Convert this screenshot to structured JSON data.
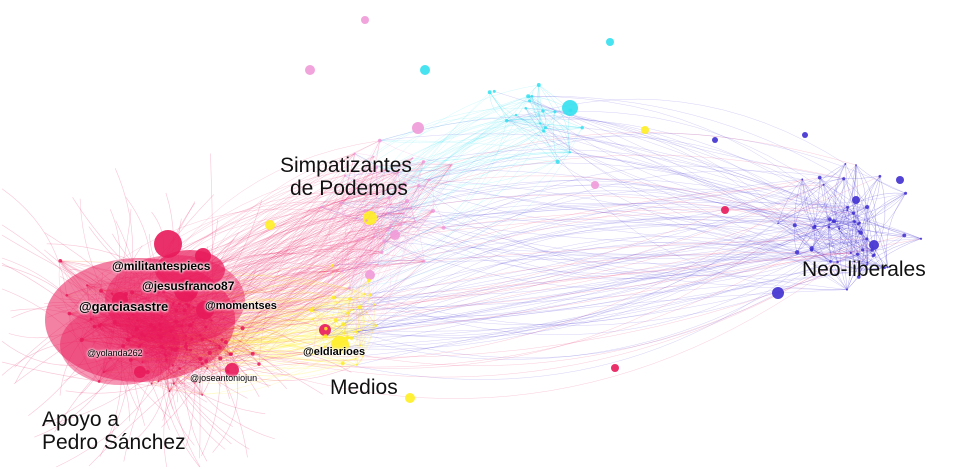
{
  "clusters": [
    {
      "id": "pedro",
      "label_line1": "Apoyo a",
      "label_line2": "Pedro Sánchez",
      "color": "#e8195a"
    },
    {
      "id": "podemos",
      "label_line1": "Simpatizantes",
      "label_line2": "de Podemos",
      "color": "#f09ad8"
    },
    {
      "id": "medios",
      "label_line1": "Medios",
      "color": "#ffee22"
    },
    {
      "id": "neoliberales",
      "label_line1": "Neo-liberales",
      "color": "#3f2fd0"
    },
    {
      "id": "cyan",
      "color": "#33e0f0"
    }
  ],
  "handles": {
    "militantespiecs": "@militantespiecs",
    "jesusfranco87": "@jesusfranco87",
    "garciasastre": "@garciasastre",
    "momentses": "@momentses",
    "eldiarioes": "@eldiarioes",
    "yolanda262": "@yolanda262",
    "joseantoniojun": "@joseantoniojun"
  }
}
